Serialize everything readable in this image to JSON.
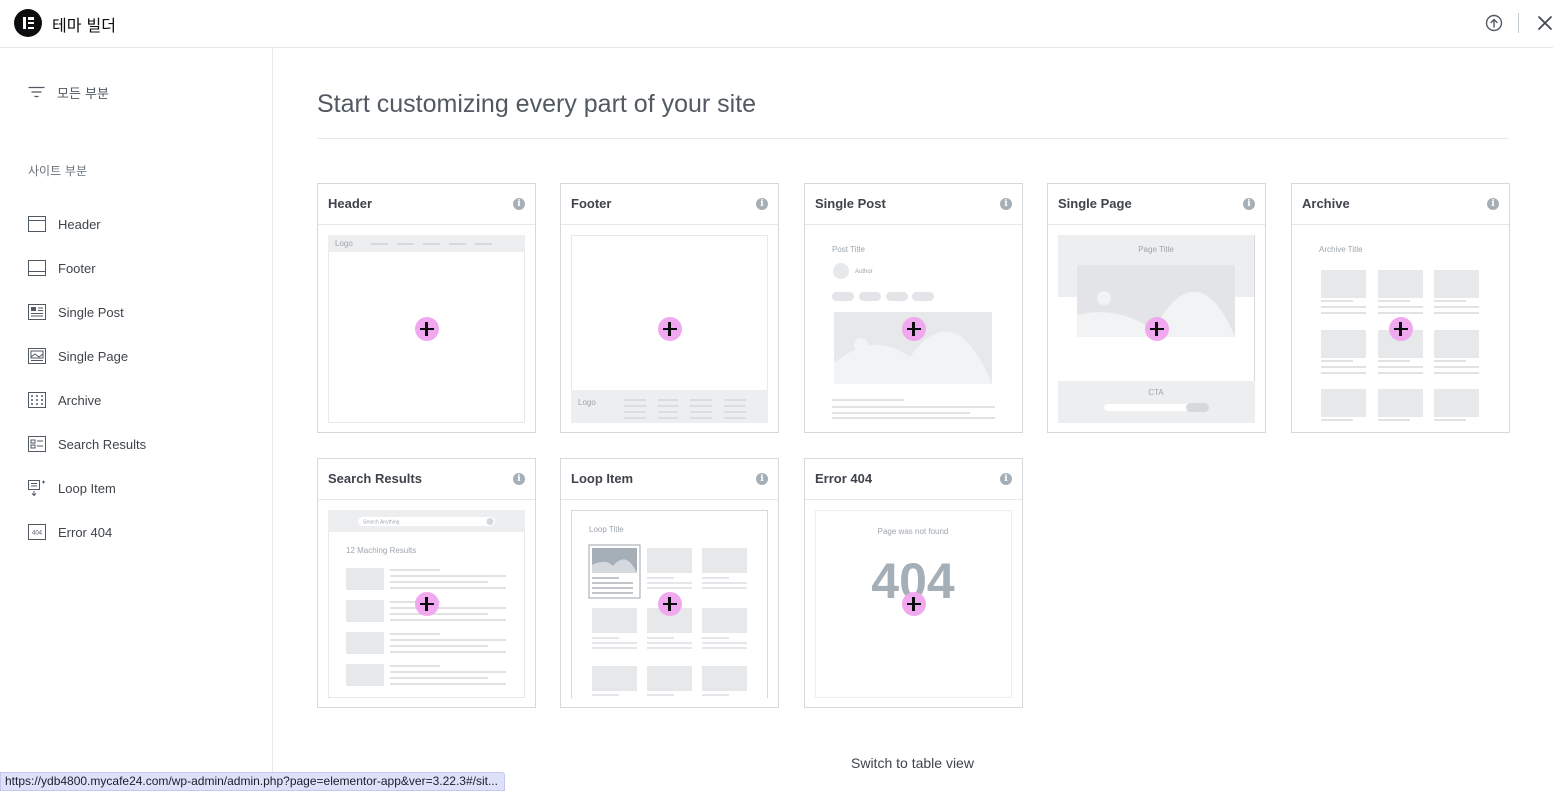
{
  "app": {
    "title": "테마 빌더"
  },
  "sidebar": {
    "all_parts_label": "모든 부분",
    "section_heading": "사이트 부분",
    "items": [
      {
        "label": "Header",
        "icon": "header-icon"
      },
      {
        "label": "Footer",
        "icon": "footer-icon"
      },
      {
        "label": "Single Post",
        "icon": "single-post-icon"
      },
      {
        "label": "Single Page",
        "icon": "single-page-icon"
      },
      {
        "label": "Archive",
        "icon": "archive-icon"
      },
      {
        "label": "Search Results",
        "icon": "search-results-icon"
      },
      {
        "label": "Loop Item",
        "icon": "loop-item-icon"
      },
      {
        "label": "Error 404",
        "icon": "error-404-icon"
      }
    ]
  },
  "main": {
    "title": "Start customizing every part of your site",
    "cards": [
      {
        "title": "Header",
        "thumb": {
          "logo": "Logo"
        }
      },
      {
        "title": "Footer",
        "thumb": {
          "logo": "Logo"
        }
      },
      {
        "title": "Single Post",
        "thumb": {
          "title": "Post Title",
          "author": "Author"
        }
      },
      {
        "title": "Single Page",
        "thumb": {
          "title": "Page Title",
          "cta": "CTA"
        }
      },
      {
        "title": "Archive",
        "thumb": {
          "title": "Archive Title"
        }
      },
      {
        "title": "Search Results",
        "thumb": {
          "search_placeholder": "Search Anything",
          "results": "12 Maching Results"
        }
      },
      {
        "title": "Loop Item",
        "thumb": {
          "title": "Loop Title"
        }
      },
      {
        "title": "Error 404",
        "thumb": {
          "message": "Page was not found",
          "code": "404"
        }
      }
    ],
    "switch_view_label": "Switch to table view"
  },
  "status_bar": {
    "url": "https://ydb4800.mycafe24.com/wp-admin/admin.php?page=elementor-app&ver=3.22.3#/sit..."
  },
  "colors": {
    "accent_plus": "#f0a8ef",
    "text": "#3f444b",
    "border": "#d5d8dc"
  }
}
